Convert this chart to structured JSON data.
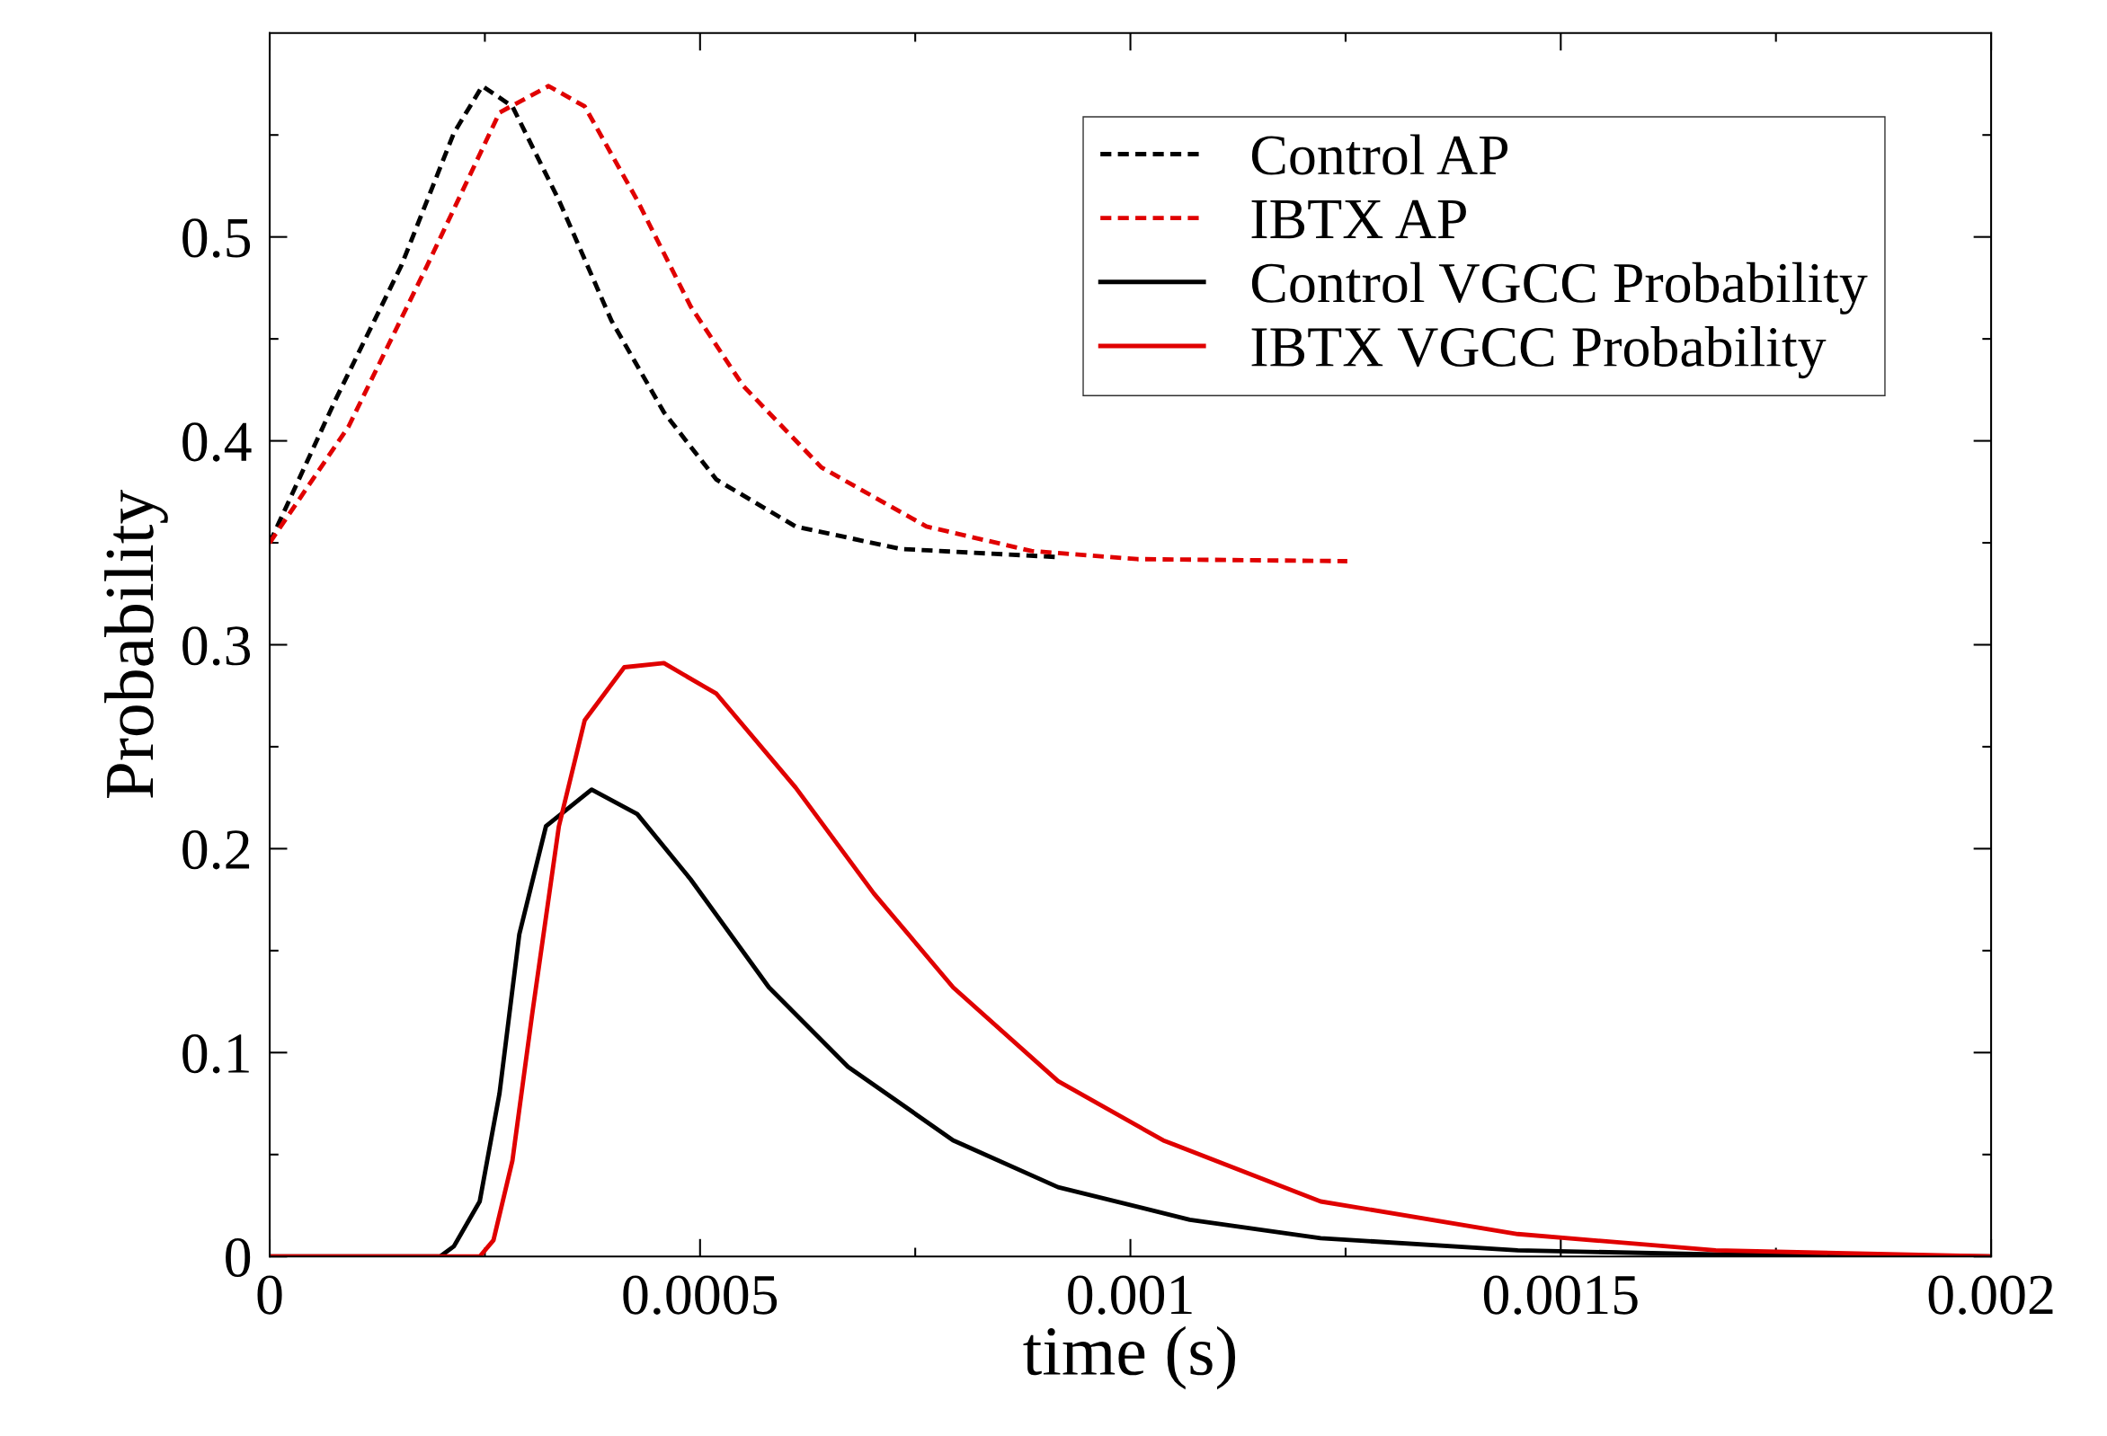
{
  "chart_data": {
    "type": "line",
    "xlabel": "time (s)",
    "ylabel": "Probability",
    "xlim": [
      0,
      0.002
    ],
    "ylim": [
      0,
      0.6
    ],
    "xticks": [
      0,
      {
        "value": 0.00025,
        "label": null
      },
      0.0005,
      {
        "value": 0.00075,
        "label": null
      },
      0.001,
      {
        "value": 0.00125,
        "label": null
      },
      0.0015,
      {
        "value": 0.00175,
        "label": null
      },
      0.002
    ],
    "yticks": [
      0,
      {
        "value": 0.05,
        "label": null
      },
      0.1,
      {
        "value": 0.15,
        "label": null
      },
      0.2,
      {
        "value": 0.25,
        "label": null
      },
      0.3,
      {
        "value": 0.35,
        "label": null
      },
      0.4,
      {
        "value": 0.45,
        "label": null
      },
      0.5,
      {
        "value": 0.55,
        "label": null
      }
    ],
    "grid": false,
    "legend": "top right",
    "marker": "none",
    "series": [
      {
        "name": "Control AP",
        "color": "#000000",
        "line_style": "dashed",
        "x": [
          0,
          7.63e-05,
          0.000153,
          0.000214,
          0.000247,
          0.000282,
          0.000336,
          0.000397,
          0.000458,
          0.000519,
          0.000611,
          0.000733,
          0.000916
        ],
        "values": [
          0.35,
          0.42,
          0.486,
          0.551,
          0.574,
          0.564,
          0.518,
          0.459,
          0.414,
          0.381,
          0.358,
          0.347,
          0.343
        ]
      },
      {
        "name": "IBTX AP",
        "color": "#e00000",
        "line_style": "dashed",
        "x": [
          0,
          9.16e-05,
          0.000183,
          0.000267,
          0.000324,
          0.000366,
          0.000427,
          0.000489,
          0.00055,
          0.000641,
          0.000763,
          0.000885,
          0.001008,
          0.001252
        ],
        "values": [
          0.35,
          0.407,
          0.486,
          0.561,
          0.574,
          0.564,
          0.518,
          0.466,
          0.427,
          0.387,
          0.358,
          0.346,
          0.342,
          0.341
        ]
      },
      {
        "name": "Control VGCC Probability",
        "color": "#000000",
        "line_style": "solid",
        "x": [
          0,
          0.000198,
          0.000214,
          0.000244,
          0.000267,
          0.00029,
          0.000321,
          0.000374,
          0.000427,
          0.000489,
          0.00058,
          0.000672,
          0.000794,
          0.000916,
          0.001069,
          0.001221,
          0.00145,
          0.00168,
          0.002
        ],
        "values": [
          0,
          0,
          0.005,
          0.027,
          0.08,
          0.158,
          0.211,
          0.229,
          0.217,
          0.185,
          0.132,
          0.093,
          0.057,
          0.034,
          0.018,
          0.009,
          0.003,
          0.001,
          0
        ]
      },
      {
        "name": "IBTX VGCC Probability",
        "color": "#e00000",
        "line_style": "solid",
        "x": [
          0,
          0.000244,
          0.00026,
          0.000282,
          0.000305,
          0.000336,
          0.000366,
          0.000412,
          0.000458,
          0.000519,
          0.000611,
          0.000702,
          0.000794,
          0.000916,
          0.001038,
          0.001221,
          0.00145,
          0.00168,
          0.002
        ],
        "values": [
          0,
          0,
          0.008,
          0.047,
          0.119,
          0.211,
          0.263,
          0.289,
          0.291,
          0.276,
          0.23,
          0.178,
          0.132,
          0.086,
          0.057,
          0.027,
          0.011,
          0.003,
          0
        ]
      }
    ]
  }
}
